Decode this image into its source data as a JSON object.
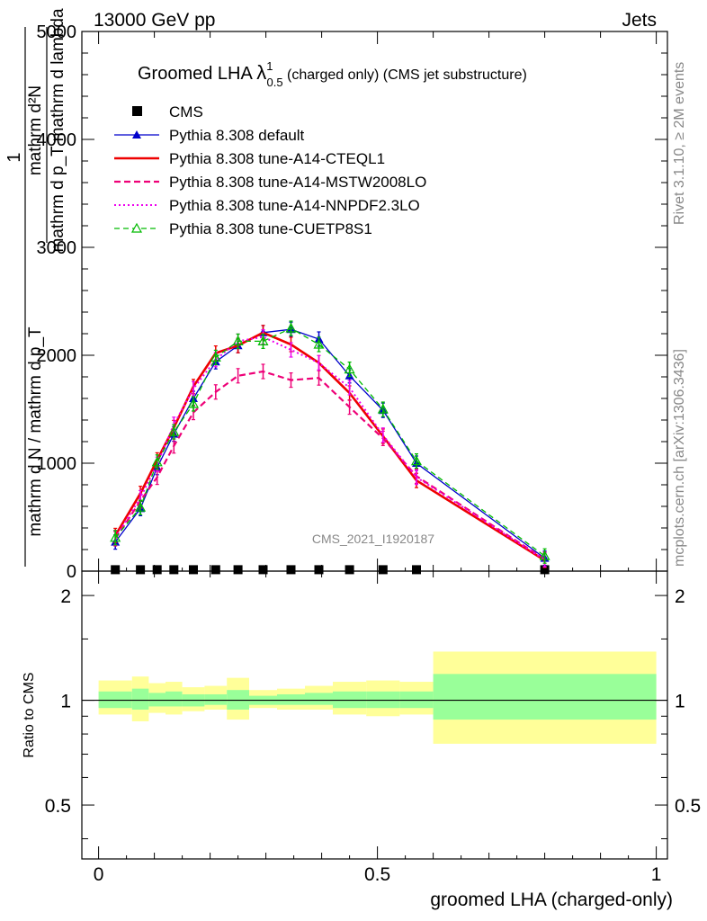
{
  "header": {
    "energy": "13000 GeV pp",
    "category": "Jets"
  },
  "side_labels": {
    "rivet": "Rivet 3.1.10, ≥ 2M events",
    "mcplots": "mcplots.cern.ch [arXiv:1306.3436]"
  },
  "watermark": "CMS_2021_I1920187",
  "chart_data": [
    {
      "type": "line",
      "panel": "main",
      "title": {
        "prefix": "Groomed LHA ",
        "lambda": "λ",
        "sup": "1",
        "sub": "0.5",
        "suffix": "  (charged only) (CMS jet substructure)"
      },
      "ylabel": {
        "num": "mathrm d²N",
        "den": "mathrm d p_T mathrm d lambda",
        "frac_num": "1",
        "frac_den": "mathrm d N / mathrm d p_T"
      },
      "xlim": [
        -0.03,
        1.02
      ],
      "ylim": [
        0,
        5000
      ],
      "ytick_labels": [
        "0",
        "1000",
        "2000",
        "3000",
        "4000",
        "5000"
      ],
      "grid": false,
      "legend_position": "top-left",
      "x": [
        0.03,
        0.075,
        0.105,
        0.135,
        0.17,
        0.21,
        0.25,
        0.295,
        0.345,
        0.395,
        0.45,
        0.51,
        0.57,
        0.8
      ],
      "series": [
        {
          "name": "CMS",
          "color": "#000000",
          "style": "marker",
          "values": [
            5,
            5,
            5,
            5,
            5,
            5,
            5,
            5,
            5,
            5,
            5,
            5,
            5,
            5
          ]
        },
        {
          "name": "Pythia 8.308 default",
          "color": "#0000cc",
          "style": "solid-triangle",
          "values": [
            270,
            580,
            960,
            1270,
            1600,
            1940,
            2090,
            2210,
            2240,
            2150,
            1810,
            1490,
            1000,
            120
          ]
        },
        {
          "name": "Pythia 8.308 tune-A14-CTEQL1",
          "color": "#ee0000",
          "style": "thick-solid",
          "values": [
            330,
            720,
            1030,
            1330,
            1710,
            2020,
            2090,
            2210,
            2100,
            1930,
            1650,
            1250,
            840,
            100
          ]
        },
        {
          "name": "Pythia 8.308 tune-A14-MSTW2008LO",
          "color": "#ee0077",
          "style": "dashed",
          "values": [
            300,
            650,
            870,
            1160,
            1470,
            1660,
            1810,
            1850,
            1770,
            1790,
            1520,
            1230,
            880,
            110
          ]
        },
        {
          "name": "Pythia 8.308 tune-A14-NNPDF2.3LO",
          "color": "#ee00ee",
          "style": "dotted",
          "values": [
            310,
            680,
            990,
            1360,
            1690,
            1960,
            2130,
            2170,
            2050,
            1930,
            1700,
            1260,
            870,
            105
          ]
        },
        {
          "name": "Pythia 8.308 tune-CUETP8S1",
          "color": "#00bb00",
          "style": "dashed-open-triangle",
          "values": [
            310,
            590,
            1010,
            1290,
            1550,
            1980,
            2130,
            2130,
            2250,
            2100,
            1870,
            1500,
            1020,
            140
          ]
        }
      ]
    },
    {
      "type": "area",
      "panel": "ratio",
      "ylabel": "Ratio to CMS",
      "xlabel": "groomed LHA (charged-only)",
      "xlim": [
        -0.03,
        1.02
      ],
      "ylim": [
        0.35,
        2.35
      ],
      "ytick_labels": [
        "0.5",
        "1",
        "2"
      ],
      "xtick_labels": [
        "0",
        "0.5",
        "1"
      ],
      "reference": 1,
      "bins": [
        0,
        0.06,
        0.09,
        0.12,
        0.15,
        0.19,
        0.23,
        0.27,
        0.32,
        0.37,
        0.42,
        0.48,
        0.54,
        0.6,
        1.0
      ],
      "band_outer_lo": [
        0.91,
        0.91,
        0.87,
        0.92,
        0.91,
        0.93,
        0.94,
        0.88,
        0.95,
        0.94,
        0.94,
        0.91,
        0.9,
        0.91,
        0.75
      ],
      "band_outer_hi": [
        1.14,
        1.14,
        1.17,
        1.12,
        1.13,
        1.09,
        1.1,
        1.16,
        1.07,
        1.08,
        1.1,
        1.13,
        1.14,
        1.13,
        1.38
      ],
      "band_inner_lo": [
        0.95,
        0.95,
        0.94,
        0.96,
        0.96,
        0.96,
        0.97,
        0.94,
        0.97,
        0.97,
        0.97,
        0.95,
        0.95,
        0.95,
        0.88
      ],
      "band_inner_hi": [
        1.06,
        1.06,
        1.08,
        1.05,
        1.06,
        1.04,
        1.04,
        1.07,
        1.03,
        1.04,
        1.05,
        1.06,
        1.06,
        1.06,
        1.19
      ],
      "colors": {
        "outer": "#ffff99",
        "inner": "#99ff99"
      }
    }
  ]
}
